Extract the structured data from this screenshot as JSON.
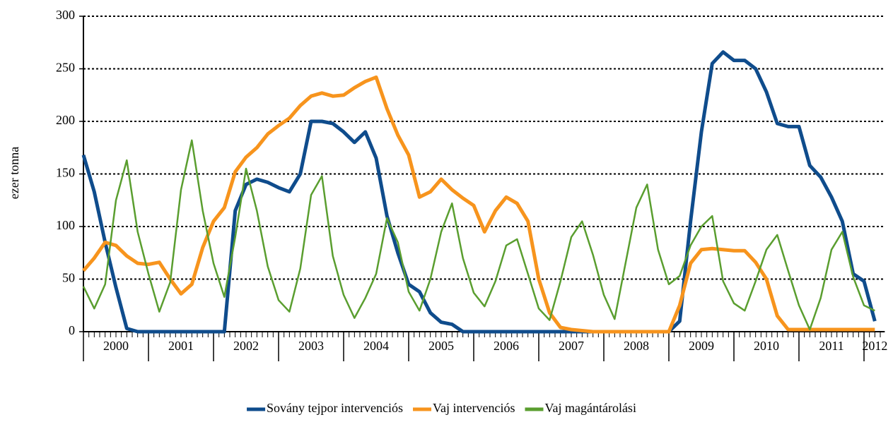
{
  "chart_data": {
    "type": "line",
    "y_label": "ezer tonna",
    "categories": [
      null,
      null,
      null,
      "2000",
      null,
      null,
      null,
      null,
      null,
      "2001",
      null,
      null,
      null,
      null,
      null,
      "2002",
      null,
      null,
      null,
      null,
      null,
      "2003",
      null,
      null,
      null,
      null,
      null,
      "2004",
      null,
      null,
      null,
      null,
      null,
      "2005",
      null,
      null,
      null,
      null,
      null,
      "2006",
      null,
      null,
      null,
      null,
      null,
      "2007",
      null,
      null,
      null,
      null,
      null,
      "2008",
      null,
      null,
      null,
      null,
      null,
      "2009",
      null,
      null,
      null,
      null,
      null,
      "2010",
      null,
      null,
      null,
      null,
      null,
      "2011",
      null,
      null,
      null,
      "2012"
    ],
    "series": [
      {
        "name": "Sovány tejpor intervenciós",
        "color": "#0f4c8c",
        "values": [
          168,
          133,
          85,
          42,
          3,
          0,
          0,
          0,
          0,
          0,
          0,
          0,
          0,
          0,
          115,
          140,
          145,
          142,
          137,
          133,
          150,
          200,
          200,
          198,
          190,
          180,
          190,
          165,
          110,
          75,
          45,
          38,
          18,
          9,
          7,
          0,
          0,
          0,
          0,
          0,
          0,
          0,
          0,
          0,
          0,
          0,
          0,
          0,
          0,
          0,
          0,
          0,
          0,
          0,
          0,
          10,
          105,
          190,
          255,
          266,
          258,
          258,
          250,
          228,
          198,
          195,
          195,
          158,
          147,
          128,
          105,
          55,
          48,
          10
        ]
      },
      {
        "name": "Vaj intervenciós",
        "color": "#f7941d",
        "values": [
          58,
          70,
          85,
          82,
          72,
          65,
          64,
          66,
          50,
          36,
          45,
          80,
          105,
          118,
          152,
          166,
          175,
          188,
          196,
          203,
          215,
          224,
          227,
          224,
          225,
          232,
          238,
          242,
          212,
          187,
          168,
          128,
          133,
          145,
          135,
          127,
          120,
          95,
          115,
          128,
          122,
          105,
          50,
          18,
          4,
          2,
          1,
          0,
          0,
          0,
          0,
          0,
          0,
          0,
          0,
          25,
          65,
          78,
          79,
          78,
          77,
          77,
          66,
          50,
          15,
          2,
          2,
          2,
          2,
          2,
          2,
          2,
          2,
          2
        ]
      },
      {
        "name": "Vaj magántárolási",
        "color": "#5a9e2f",
        "values": [
          43,
          22,
          45,
          125,
          163,
          95,
          55,
          19,
          47,
          135,
          182,
          115,
          65,
          33,
          90,
          155,
          115,
          62,
          30,
          19,
          60,
          130,
          148,
          72,
          35,
          13,
          32,
          55,
          108,
          85,
          38,
          20,
          50,
          95,
          122,
          70,
          37,
          24,
          48,
          82,
          88,
          55,
          22,
          11,
          48,
          90,
          105,
          73,
          35,
          12,
          65,
          118,
          140,
          78,
          45,
          53,
          82,
          100,
          110,
          48,
          27,
          20,
          48,
          78,
          92,
          58,
          25,
          2,
          32,
          78,
          95,
          52,
          25,
          20
        ]
      }
    ],
    "ylim": [
      0,
      300
    ],
    "yticks": [
      0,
      50,
      100,
      150,
      200,
      250,
      300
    ],
    "grid": true,
    "legend": "bottom"
  }
}
